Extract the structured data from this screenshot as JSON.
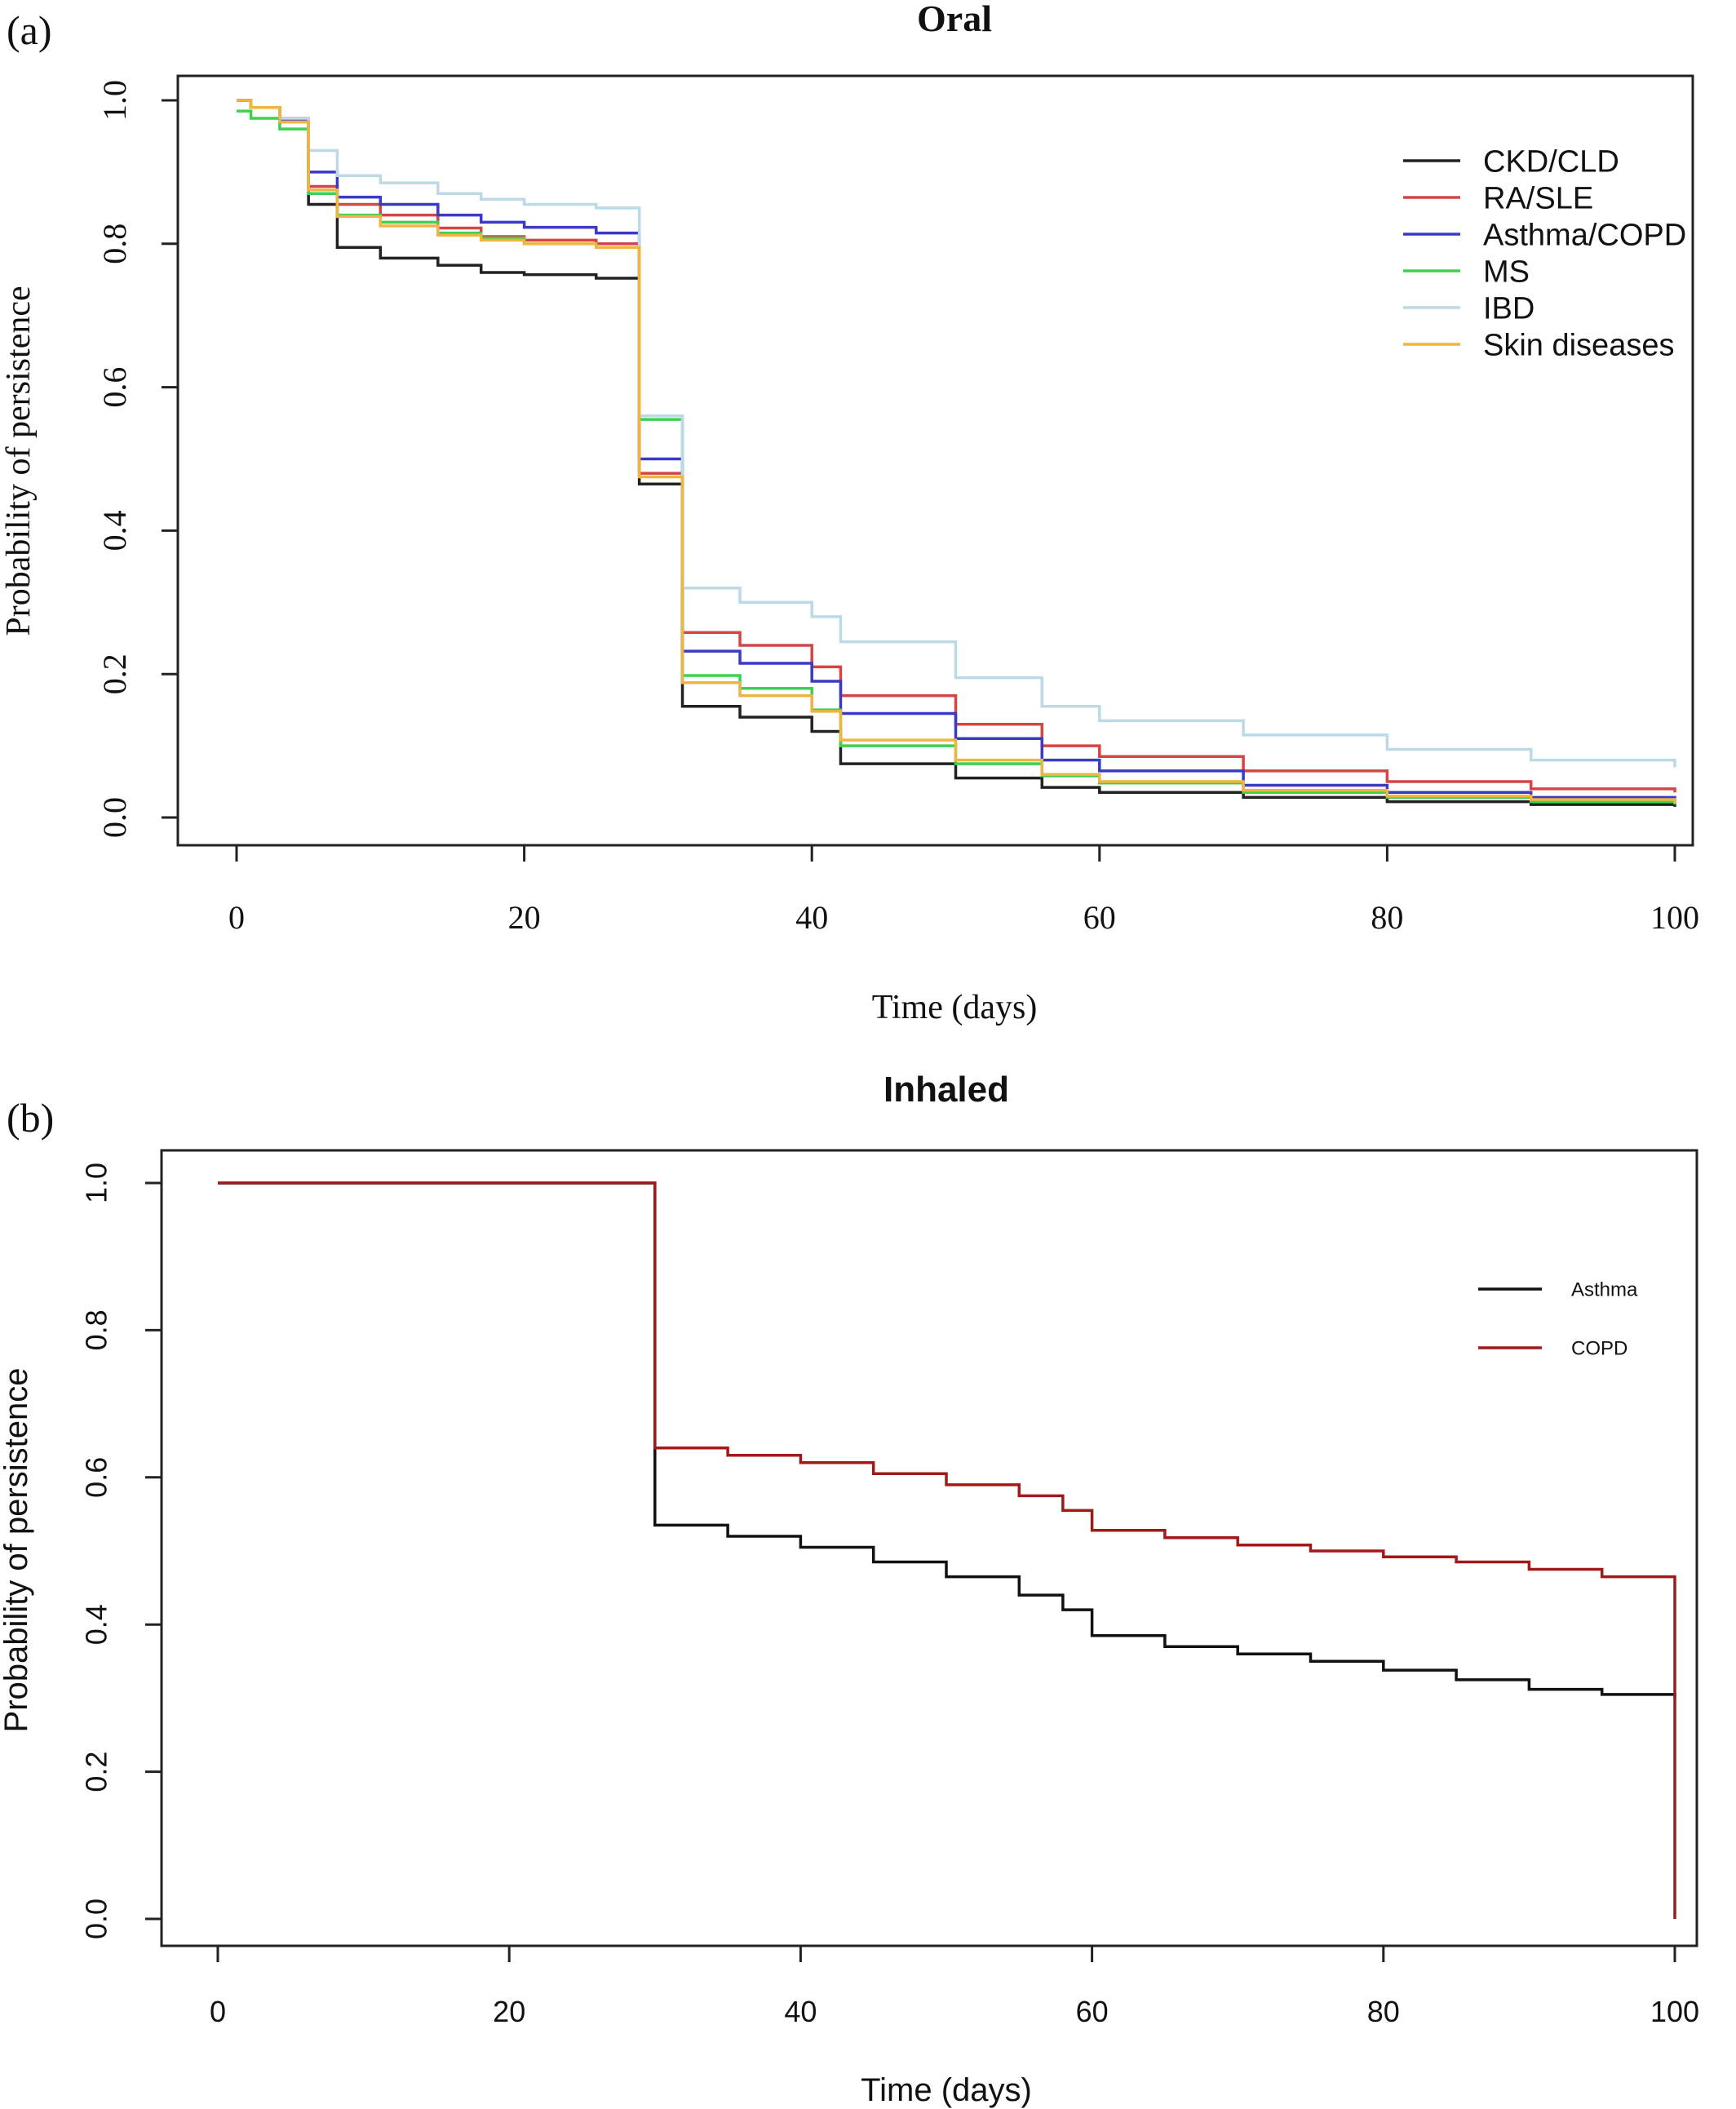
{
  "chart_data": [
    {
      "panel_label": "(a)",
      "type": "line",
      "step": true,
      "title": "Oral",
      "xlabel": "Time (days)",
      "ylabel": "Probability of persistence",
      "xlim": [
        0,
        100
      ],
      "ylim": [
        0,
        1
      ],
      "xticks": [
        "0",
        "20",
        "40",
        "60",
        "80",
        "100"
      ],
      "yticks": [
        "0.0",
        "0.2",
        "0.4",
        "0.6",
        "0.8",
        "1.0"
      ],
      "grid": false,
      "legend_position": "top-right",
      "series": [
        {
          "name": "CKD/CLD",
          "color": "#222222",
          "x": [
            0,
            1,
            3,
            5,
            7,
            10,
            14,
            17,
            20,
            25,
            28,
            31,
            35,
            40,
            42,
            50,
            56,
            60,
            70,
            80,
            90,
            100
          ],
          "y": [
            1.0,
            0.99,
            0.97,
            0.855,
            0.795,
            0.78,
            0.77,
            0.76,
            0.757,
            0.752,
            0.465,
            0.155,
            0.14,
            0.12,
            0.075,
            0.055,
            0.042,
            0.035,
            0.028,
            0.022,
            0.018,
            0.015
          ]
        },
        {
          "name": "RA/SLE",
          "color": "#d64545",
          "x": [
            0,
            1,
            3,
            5,
            7,
            10,
            14,
            17,
            20,
            25,
            28,
            31,
            35,
            40,
            42,
            50,
            56,
            60,
            70,
            80,
            90,
            100
          ],
          "y": [
            1.0,
            0.99,
            0.975,
            0.88,
            0.855,
            0.84,
            0.822,
            0.81,
            0.805,
            0.8,
            0.48,
            0.258,
            0.24,
            0.21,
            0.17,
            0.13,
            0.1,
            0.085,
            0.065,
            0.05,
            0.04,
            0.035
          ]
        },
        {
          "name": "Asthma/COPD",
          "color": "#3a3ac4",
          "x": [
            0,
            1,
            3,
            5,
            7,
            10,
            14,
            17,
            20,
            25,
            28,
            31,
            35,
            40,
            42,
            50,
            56,
            60,
            70,
            80,
            90,
            100
          ],
          "y": [
            1.0,
            0.99,
            0.972,
            0.9,
            0.865,
            0.855,
            0.84,
            0.83,
            0.823,
            0.815,
            0.5,
            0.232,
            0.215,
            0.19,
            0.145,
            0.11,
            0.08,
            0.065,
            0.045,
            0.035,
            0.028,
            0.022
          ]
        },
        {
          "name": "MS",
          "color": "#3fd04f",
          "x": [
            0,
            1,
            3,
            5,
            7,
            10,
            14,
            17,
            20,
            25,
            28,
            31,
            35,
            40,
            42,
            50,
            56,
            60,
            70,
            80,
            90,
            100
          ],
          "y": [
            0.985,
            0.975,
            0.96,
            0.87,
            0.84,
            0.83,
            0.815,
            0.808,
            0.8,
            0.795,
            0.555,
            0.198,
            0.18,
            0.15,
            0.1,
            0.075,
            0.058,
            0.048,
            0.035,
            0.028,
            0.022,
            0.018
          ]
        },
        {
          "name": "IBD",
          "color": "#bcd9e6",
          "x": [
            0,
            1,
            3,
            5,
            7,
            10,
            14,
            17,
            20,
            25,
            28,
            31,
            35,
            40,
            42,
            50,
            56,
            60,
            70,
            80,
            90,
            100
          ],
          "y": [
            1.0,
            0.99,
            0.975,
            0.93,
            0.895,
            0.885,
            0.87,
            0.862,
            0.855,
            0.85,
            0.56,
            0.32,
            0.3,
            0.28,
            0.245,
            0.195,
            0.155,
            0.135,
            0.115,
            0.095,
            0.08,
            0.07
          ]
        },
        {
          "name": "Skin diseases",
          "color": "#efb441",
          "x": [
            0,
            1,
            3,
            5,
            7,
            10,
            14,
            17,
            20,
            25,
            28,
            31,
            35,
            40,
            42,
            50,
            56,
            60,
            70,
            80,
            90,
            100
          ],
          "y": [
            1.0,
            0.99,
            0.97,
            0.875,
            0.838,
            0.825,
            0.812,
            0.805,
            0.8,
            0.795,
            0.475,
            0.188,
            0.17,
            0.148,
            0.108,
            0.08,
            0.06,
            0.05,
            0.038,
            0.03,
            0.025,
            0.02
          ]
        }
      ]
    },
    {
      "panel_label": "(b)",
      "type": "line",
      "step": true,
      "title": "Inhaled",
      "xlabel": "Time (days)",
      "ylabel": "Probability of persistence",
      "xlim": [
        0,
        100
      ],
      "ylim": [
        0,
        1
      ],
      "xticks": [
        "0",
        "20",
        "40",
        "60",
        "80",
        "100"
      ],
      "yticks": [
        "0.0",
        "0.2",
        "0.4",
        "0.6",
        "0.8",
        "1.0"
      ],
      "grid": false,
      "legend_position": "top-right",
      "series": [
        {
          "name": "Asthma",
          "color": "#111111",
          "x": [
            0,
            30,
            35,
            40,
            45,
            50,
            55,
            58,
            60,
            65,
            70,
            75,
            80,
            85,
            90,
            95,
            100
          ],
          "y": [
            1.0,
            0.535,
            0.52,
            0.505,
            0.485,
            0.465,
            0.44,
            0.42,
            0.385,
            0.37,
            0.36,
            0.35,
            0.338,
            0.325,
            0.312,
            0.305,
            0.3
          ]
        },
        {
          "name": "COPD",
          "color": "#a11a1a",
          "x": [
            0,
            30,
            35,
            40,
            45,
            50,
            55,
            58,
            60,
            65,
            70,
            75,
            80,
            85,
            90,
            95,
            100
          ],
          "y": [
            1.0,
            0.64,
            0.63,
            0.62,
            0.605,
            0.59,
            0.575,
            0.555,
            0.528,
            0.518,
            0.508,
            0.5,
            0.492,
            0.485,
            0.475,
            0.465,
            0.46
          ]
        }
      ]
    }
  ]
}
